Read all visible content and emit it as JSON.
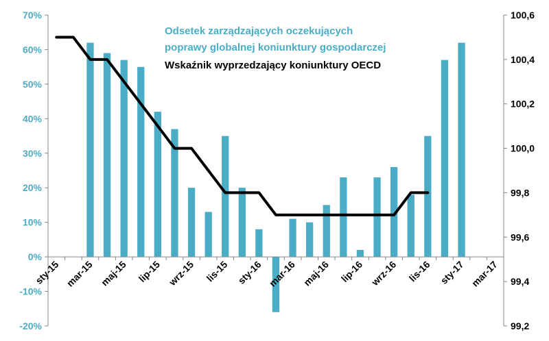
{
  "chart_data": {
    "type": "bar+line",
    "title": "",
    "xlabel": "",
    "ylabel": "",
    "x_tick_labels": [
      "sty-15",
      "mar-15",
      "maj-15",
      "lip-15",
      "wrz-15",
      "lis-15",
      "sty-16",
      "mar-16",
      "maj-16",
      "lip-16",
      "wrz-16",
      "lis-16",
      "sty-17",
      "mar-17"
    ],
    "y_left": {
      "min": -20,
      "max": 70,
      "step": 10,
      "tick_labels": [
        "-20%",
        "-10%",
        "0%",
        "10%",
        "20%",
        "30%",
        "40%",
        "50%",
        "60%",
        "70%"
      ]
    },
    "y_right": {
      "min": 99.2,
      "max": 100.6,
      "step": 0.2,
      "tick_labels": [
        "99,2",
        "99,4",
        "99,6",
        "99,8",
        "100,0",
        "100,2",
        "100,4",
        "100,6"
      ]
    },
    "months": [
      "2015-01",
      "2015-02",
      "2015-03",
      "2015-04",
      "2015-05",
      "2015-06",
      "2015-07",
      "2015-08",
      "2015-09",
      "2015-10",
      "2015-11",
      "2015-12",
      "2016-01",
      "2016-02",
      "2016-03",
      "2016-04",
      "2016-05",
      "2016-06",
      "2016-07",
      "2016-08",
      "2016-09",
      "2016-10",
      "2016-11",
      "2016-12",
      "2017-01",
      "2017-02",
      "2017-03"
    ],
    "series": [
      {
        "name": "Odsetek zarządzających oczekujących poprawy globalnej koniunktury gospodarczej",
        "axis": "left",
        "kind": "bar",
        "color": "#4bacc6",
        "values": [
          null,
          null,
          62,
          59,
          57,
          55,
          42,
          37,
          20,
          13,
          35,
          20,
          8,
          -16,
          11,
          10,
          15,
          23,
          2,
          23,
          26,
          18,
          35,
          57,
          62,
          null,
          null
        ]
      },
      {
        "name": "Wskaźnik wyprzedzający koniunktury OECD",
        "axis": "right",
        "kind": "line",
        "color": "#000000",
        "values": [
          100.5,
          100.5,
          100.4,
          100.4,
          100.3,
          100.2,
          100.1,
          100.0,
          100.0,
          99.9,
          99.8,
          99.8,
          99.8,
          99.7,
          99.7,
          99.7,
          99.7,
          99.7,
          99.7,
          99.7,
          99.7,
          99.8,
          99.8,
          null,
          null,
          null,
          null
        ]
      }
    ],
    "legend_lines": [
      {
        "text": "Odsetek zarządzających  oczekujących",
        "color": "#4bacc6"
      },
      {
        "text": "poprawy globalnej koniunktury gospodarczej",
        "color": "#4bacc6"
      },
      {
        "text": "Wskaźnik wyprzedzający koniunktury OECD",
        "color": "#000000"
      }
    ],
    "legend_position": "top-center",
    "grid": false
  }
}
